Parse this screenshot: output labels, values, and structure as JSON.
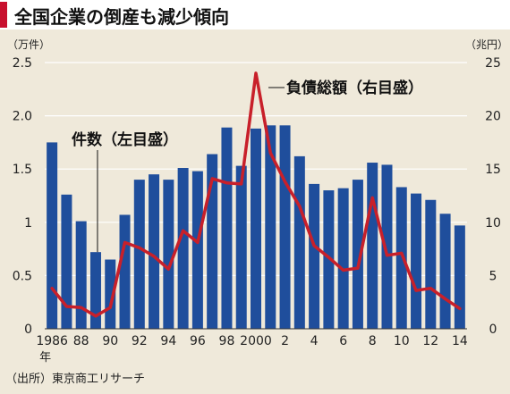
{
  "header": {
    "title": "全国企業の倒産も減少傾向"
  },
  "source": "（出所）東京商工リサーチ",
  "chart_data": {
    "type": "bar",
    "x": [
      "1986",
      "1987",
      "1988",
      "1989",
      "1990",
      "1991",
      "1992",
      "1993",
      "1994",
      "1995",
      "1996",
      "1997",
      "1998",
      "1999",
      "2000",
      "2001",
      "2002",
      "2003",
      "2004",
      "2005",
      "2006",
      "2007",
      "2008",
      "2009",
      "2010",
      "2011",
      "2012",
      "2013",
      "2014"
    ],
    "x_tick_labels": [
      "1986",
      "88",
      "90",
      "92",
      "94",
      "96",
      "98",
      "2000",
      "2",
      "4",
      "6",
      "8",
      "10",
      "12",
      "14"
    ],
    "x_unit": "年",
    "series": [
      {
        "name": "件数（左目盛）",
        "type": "bar",
        "axis": "left",
        "color": "#1f4e9c",
        "values": [
          1.75,
          1.26,
          1.01,
          0.72,
          0.65,
          1.07,
          1.4,
          1.45,
          1.4,
          1.51,
          1.48,
          1.64,
          1.89,
          1.53,
          1.88,
          1.91,
          1.91,
          1.62,
          1.36,
          1.3,
          1.32,
          1.4,
          1.56,
          1.54,
          1.33,
          1.27,
          1.21,
          1.08,
          0.97
        ]
      },
      {
        "name": "負債総額（右目盛）",
        "type": "line",
        "axis": "right",
        "color": "#c8202a",
        "values": [
          3.8,
          2.1,
          2.0,
          1.2,
          2.0,
          8.1,
          7.6,
          6.8,
          5.6,
          9.2,
          8.1,
          14.1,
          13.7,
          13.6,
          24.0,
          16.5,
          13.8,
          11.5,
          7.8,
          6.7,
          5.5,
          5.7,
          12.3,
          6.9,
          7.1,
          3.6,
          3.8,
          2.8,
          1.9
        ]
      }
    ],
    "y_left": {
      "unit": "（万件）",
      "range": [
        0,
        2.5
      ],
      "ticks": [
        "0",
        "0.5",
        "1",
        "1.5",
        "2.0",
        "2.5"
      ],
      "tick_values": [
        0,
        0.5,
        1,
        1.5,
        2.0,
        2.5
      ]
    },
    "y_right": {
      "unit": "（兆円）",
      "range": [
        0,
        25
      ],
      "ticks": [
        "0",
        "5",
        "10",
        "15",
        "20",
        "25"
      ],
      "tick_values": [
        0,
        5,
        10,
        15,
        20,
        25
      ]
    },
    "grid": true
  }
}
